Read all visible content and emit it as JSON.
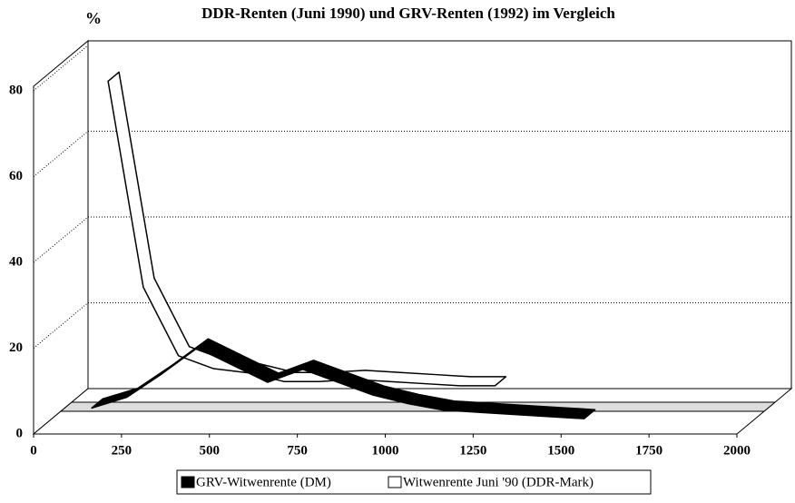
{
  "chart_data": {
    "type": "ribbon3d",
    "title": "DDR-Renten (Juni 1990) und GRV-Renten (1992) im Vergleich",
    "y_label": "%",
    "x": [
      150,
      250,
      350,
      450,
      550,
      650,
      750,
      850,
      950,
      1050,
      1150,
      1250,
      1350,
      1450,
      1550
    ],
    "series": [
      {
        "name": "GRV-Witwenrente (DM)",
        "color": "#000000",
        "values": [
          5,
          7.5,
          13,
          19,
          15,
          11,
          14,
          11,
          8,
          6,
          4.5,
          4,
          3.5,
          3,
          2.5
        ]
      },
      {
        "name": "Witwenrente Juni '90 (DDR-Mark)",
        "color": "#ffffff",
        "values": [
          78,
          30,
          14,
          11,
          10,
          8,
          8,
          8.5,
          8,
          7.5,
          7,
          7,
          null,
          null,
          null
        ]
      }
    ],
    "xlim": [
      0,
      2000
    ],
    "xticks": [
      0,
      250,
      500,
      750,
      1000,
      1250,
      1500,
      1750,
      2000
    ],
    "ylim": [
      0,
      80
    ],
    "yticks": [
      0,
      20,
      40,
      60,
      80
    ],
    "grid": true
  }
}
